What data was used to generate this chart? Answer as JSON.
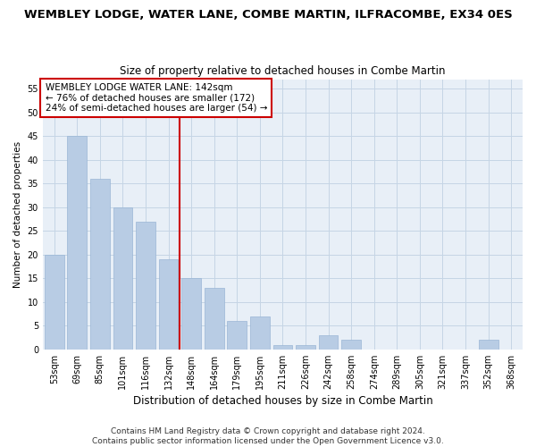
{
  "title": "WEMBLEY LODGE, WATER LANE, COMBE MARTIN, ILFRACOMBE, EX34 0ES",
  "subtitle": "Size of property relative to detached houses in Combe Martin",
  "xlabel": "Distribution of detached houses by size in Combe Martin",
  "ylabel": "Number of detached properties",
  "categories": [
    "53sqm",
    "69sqm",
    "85sqm",
    "101sqm",
    "116sqm",
    "132sqm",
    "148sqm",
    "164sqm",
    "179sqm",
    "195sqm",
    "211sqm",
    "226sqm",
    "242sqm",
    "258sqm",
    "274sqm",
    "289sqm",
    "305sqm",
    "321sqm",
    "337sqm",
    "352sqm",
    "368sqm"
  ],
  "values": [
    20,
    45,
    36,
    30,
    27,
    19,
    15,
    13,
    6,
    7,
    1,
    1,
    3,
    2,
    0,
    0,
    0,
    0,
    0,
    2,
    0
  ],
  "bar_color": "#b8cce4",
  "bar_edge_color": "#9ab5d5",
  "red_line_x": 6.0,
  "ylim": [
    0,
    57
  ],
  "yticks": [
    0,
    5,
    10,
    15,
    20,
    25,
    30,
    35,
    40,
    45,
    50,
    55
  ],
  "annotation_text": "WEMBLEY LODGE WATER LANE: 142sqm\n← 76% of detached houses are smaller (172)\n24% of semi-detached houses are larger (54) →",
  "annotation_box_color": "#ffffff",
  "annotation_box_edge_color": "#cc0000",
  "footer_line1": "Contains HM Land Registry data © Crown copyright and database right 2024.",
  "footer_line2": "Contains public sector information licensed under the Open Government Licence v3.0.",
  "background_color": "#ffffff",
  "plot_bg_color": "#e8eff7",
  "grid_color": "#c5d5e5",
  "title_fontsize": 9.5,
  "subtitle_fontsize": 8.5,
  "xlabel_fontsize": 8.5,
  "ylabel_fontsize": 7.5,
  "tick_fontsize": 7,
  "annotation_fontsize": 7.5,
  "footer_fontsize": 6.5
}
